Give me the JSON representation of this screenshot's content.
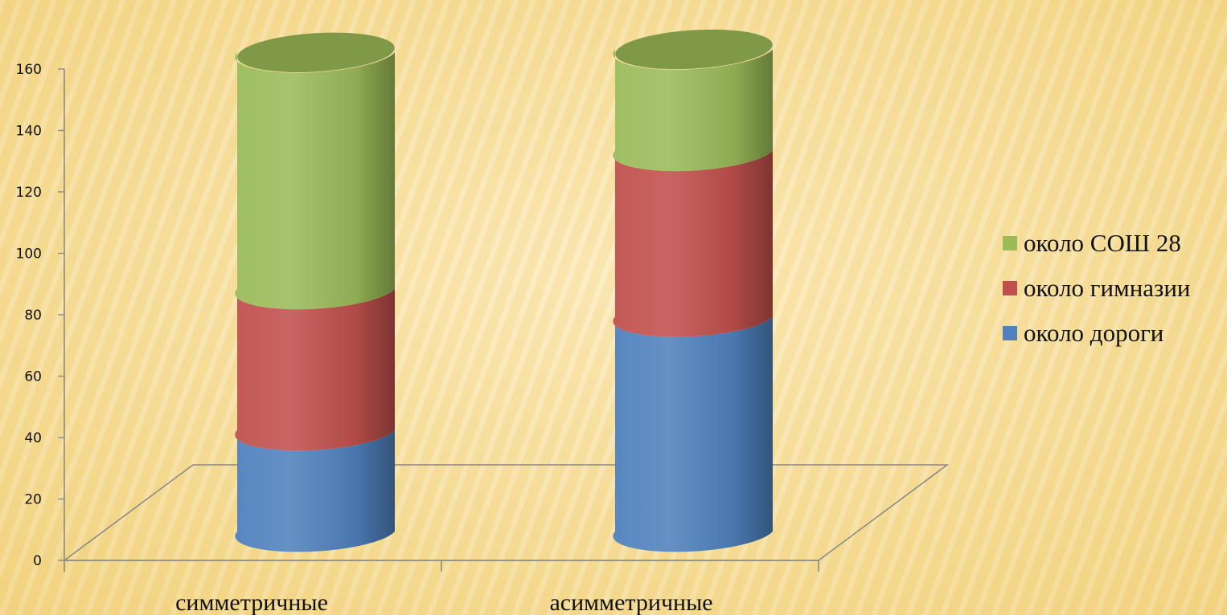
{
  "colors": {
    "background": "#f5d98a",
    "axis": "#8a8a8a",
    "series": [
      "#4f81bd",
      "#c0504d",
      "#9bbb59"
    ]
  },
  "chart_data": {
    "type": "bar",
    "stacked": true,
    "shape": "cylinder",
    "categories": [
      "симметричные",
      "асимметричные"
    ],
    "series": [
      {
        "name": "около дороги",
        "values": [
          33,
          70
        ]
      },
      {
        "name": "около гимназии",
        "values": [
          46,
          54
        ]
      },
      {
        "name": "около СОШ 28",
        "values": [
          77,
          33
        ]
      }
    ],
    "ylim": [
      0,
      160
    ],
    "yticks": [
      0,
      20,
      40,
      60,
      80,
      100,
      120,
      140,
      160
    ],
    "legend_position": "right",
    "grid": false
  }
}
